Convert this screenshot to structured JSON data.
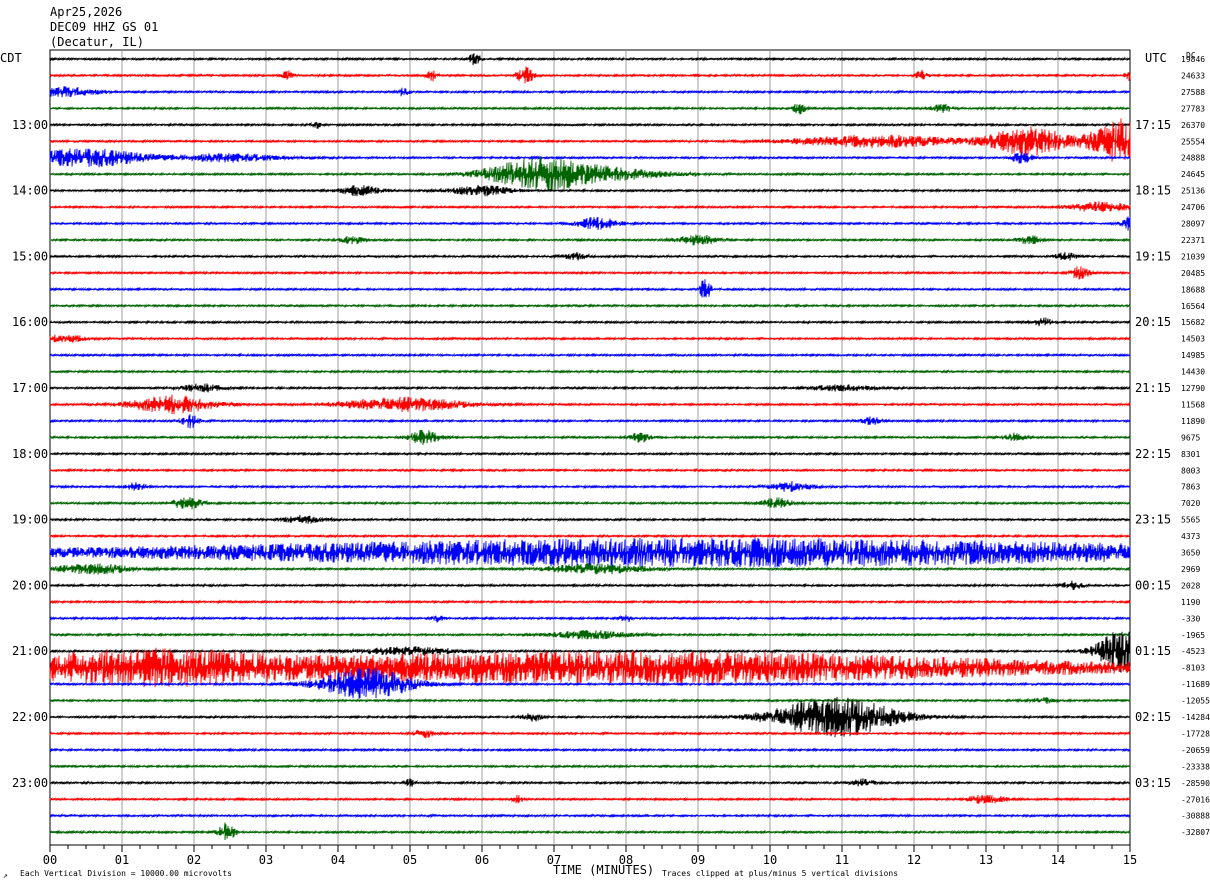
{
  "header": {
    "date": "Apr25,2026",
    "station": "DEC09 HHZ GS 01",
    "location": "(Decatur, IL)"
  },
  "left_label": "CDT",
  "right_label": "UTC",
  "dc_label": "DC",
  "footer": {
    "xlabel": "TIME (MINUTES)",
    "scale_note": "Each Vertical Division = 10000.00 microvolts",
    "clip_note": "Traces clipped at plus/minus 5 vertical divisions"
  },
  "colors": {
    "cycle": [
      "#000000",
      "#ff0000",
      "#0000ff",
      "#006400"
    ],
    "grid": "#888888"
  },
  "chart_data": {
    "type": "line",
    "title": "DEC09 HHZ GS 01",
    "xlabel": "TIME (MINUTES)",
    "ylabel": "",
    "xlim": [
      0,
      15
    ],
    "x_ticks": [
      "00",
      "01",
      "02",
      "03",
      "04",
      "05",
      "06",
      "07",
      "08",
      "09",
      "10",
      "11",
      "12",
      "13",
      "14",
      "15"
    ],
    "local_hour_labels": [
      "13:00",
      "14:00",
      "15:00",
      "16:00",
      "17:00",
      "18:00",
      "19:00",
      "20:00",
      "21:00",
      "22:00",
      "23:00"
    ],
    "utc_hour_labels": [
      "17:15",
      "18:15",
      "19:15",
      "20:15",
      "21:15",
      "22:15",
      "23:15",
      "00:15",
      "01:15",
      "02:15",
      "03:15"
    ],
    "dc_offsets": [
      "19846",
      "24633",
      "27588",
      "27783",
      "26370",
      "25554",
      "24888",
      "24645",
      "25136",
      "24706",
      "28097",
      "22371",
      "21039",
      "20485",
      "18688",
      "16564",
      "15682",
      "14503",
      "14985",
      "14430",
      "12790",
      "11568",
      "11890",
      "9675",
      "8301",
      "8003",
      "7863",
      "7020",
      "5565",
      "4373",
      "3650",
      "2969",
      "2028",
      "1190",
      "-330",
      "-1965",
      "-4523",
      "-8103",
      "-11689",
      "-12055",
      "-14284",
      "-17728",
      "-20659",
      "-23338",
      "-28590",
      "-27016",
      "-30888",
      "-32807"
    ],
    "series": [
      {
        "row": 0,
        "bursts": [
          {
            "t": 5.9,
            "a": 6,
            "w": 0.06
          }
        ]
      },
      {
        "row": 1,
        "bursts": [
          {
            "t": 3.3,
            "a": 5,
            "w": 0.05
          },
          {
            "t": 5.3,
            "a": 6,
            "w": 0.05
          },
          {
            "t": 6.6,
            "a": 9,
            "w": 0.08
          },
          {
            "t": 12.1,
            "a": 5,
            "w": 0.05
          },
          {
            "t": 15.0,
            "a": 6,
            "w": 0.05
          }
        ]
      },
      {
        "row": 2,
        "bursts": [
          {
            "t": 0.2,
            "a": 5,
            "w": 0.3
          },
          {
            "t": 4.9,
            "a": 4,
            "w": 0.05
          }
        ]
      },
      {
        "row": 3,
        "bursts": [
          {
            "t": 10.4,
            "a": 6,
            "w": 0.06
          },
          {
            "t": 12.4,
            "a": 4,
            "w": 0.1
          }
        ]
      },
      {
        "row": 4,
        "bursts": [
          {
            "t": 3.7,
            "a": 4,
            "w": 0.05
          }
        ]
      },
      {
        "row": 5,
        "bursts": [
          {
            "t": 11.5,
            "a": 6,
            "w": 0.8
          },
          {
            "t": 13.6,
            "a": 14,
            "w": 0.4
          },
          {
            "t": 14.9,
            "a": 22,
            "w": 0.3
          }
        ]
      },
      {
        "row": 6,
        "bursts": [
          {
            "t": 0.5,
            "a": 9,
            "w": 0.6
          },
          {
            "t": 2.5,
            "a": 4,
            "w": 0.5
          },
          {
            "t": 13.5,
            "a": 6,
            "w": 0.1
          }
        ]
      },
      {
        "row": 7,
        "bursts": [
          {
            "t": 6.8,
            "a": 16,
            "w": 0.5
          },
          {
            "t": 7.8,
            "a": 5,
            "w": 0.6
          }
        ]
      },
      {
        "row": 8,
        "bursts": [
          {
            "t": 4.3,
            "a": 5,
            "w": 0.2
          },
          {
            "t": 6.0,
            "a": 5,
            "w": 0.3
          }
        ]
      },
      {
        "row": 9,
        "bursts": [
          {
            "t": 14.6,
            "a": 5,
            "w": 0.3
          }
        ]
      },
      {
        "row": 10,
        "bursts": [
          {
            "t": 7.6,
            "a": 6,
            "w": 0.2
          },
          {
            "t": 15.0,
            "a": 7,
            "w": 0.08
          }
        ]
      },
      {
        "row": 11,
        "bursts": [
          {
            "t": 4.2,
            "a": 4,
            "w": 0.1
          },
          {
            "t": 9.0,
            "a": 5,
            "w": 0.2
          },
          {
            "t": 13.6,
            "a": 5,
            "w": 0.1
          }
        ]
      },
      {
        "row": 12,
        "bursts": [
          {
            "t": 7.3,
            "a": 4,
            "w": 0.1
          },
          {
            "t": 14.1,
            "a": 4,
            "w": 0.1
          }
        ]
      },
      {
        "row": 13,
        "bursts": [
          {
            "t": 14.3,
            "a": 6,
            "w": 0.1
          }
        ]
      },
      {
        "row": 14,
        "bursts": [
          {
            "t": 9.1,
            "a": 14,
            "w": 0.05
          }
        ]
      },
      {
        "row": 15,
        "bursts": []
      },
      {
        "row": 16,
        "bursts": [
          {
            "t": 13.8,
            "a": 4,
            "w": 0.1
          }
        ]
      },
      {
        "row": 17,
        "bursts": [
          {
            "t": 0.2,
            "a": 4,
            "w": 0.2
          }
        ]
      },
      {
        "row": 18,
        "bursts": []
      },
      {
        "row": 19,
        "bursts": []
      },
      {
        "row": 20,
        "bursts": [
          {
            "t": 2.1,
            "a": 4,
            "w": 0.2
          },
          {
            "t": 11.0,
            "a": 3,
            "w": 0.3
          }
        ]
      },
      {
        "row": 21,
        "bursts": [
          {
            "t": 1.7,
            "a": 9,
            "w": 0.4
          },
          {
            "t": 4.9,
            "a": 7,
            "w": 0.6
          }
        ]
      },
      {
        "row": 22,
        "bursts": [
          {
            "t": 1.95,
            "a": 7,
            "w": 0.08
          },
          {
            "t": 11.4,
            "a": 4,
            "w": 0.1
          }
        ]
      },
      {
        "row": 23,
        "bursts": [
          {
            "t": 5.2,
            "a": 7,
            "w": 0.15
          },
          {
            "t": 8.2,
            "a": 5,
            "w": 0.1
          },
          {
            "t": 13.4,
            "a": 4,
            "w": 0.1
          }
        ]
      },
      {
        "row": 24,
        "bursts": []
      },
      {
        "row": 25,
        "bursts": []
      },
      {
        "row": 26,
        "bursts": [
          {
            "t": 1.2,
            "a": 4,
            "w": 0.1
          },
          {
            "t": 10.3,
            "a": 5,
            "w": 0.2
          }
        ]
      },
      {
        "row": 27,
        "bursts": [
          {
            "t": 1.9,
            "a": 6,
            "w": 0.15
          },
          {
            "t": 10.1,
            "a": 5,
            "w": 0.15
          }
        ]
      },
      {
        "row": 28,
        "bursts": [
          {
            "t": 3.5,
            "a": 4,
            "w": 0.2
          }
        ]
      },
      {
        "row": 29,
        "bursts": []
      },
      {
        "row": 30,
        "bursts": [
          {
            "t": 9.2,
            "a": 14,
            "w": 5.8
          }
        ]
      },
      {
        "row": 31,
        "bursts": [
          {
            "t": 0.6,
            "a": 5,
            "w": 0.4
          },
          {
            "t": 7.6,
            "a": 5,
            "w": 0.5
          }
        ]
      },
      {
        "row": 32,
        "bursts": [
          {
            "t": 14.2,
            "a": 4,
            "w": 0.1
          }
        ]
      },
      {
        "row": 33,
        "bursts": []
      },
      {
        "row": 34,
        "bursts": [
          {
            "t": 5.4,
            "a": 4,
            "w": 0.05
          },
          {
            "t": 8.0,
            "a": 4,
            "w": 0.05
          }
        ]
      },
      {
        "row": 35,
        "bursts": [
          {
            "t": 7.5,
            "a": 4,
            "w": 0.4
          }
        ]
      },
      {
        "row": 36,
        "bursts": [
          {
            "t": 14.9,
            "a": 22,
            "w": 0.25
          },
          {
            "t": 5.0,
            "a": 4,
            "w": 0.5
          }
        ]
      },
      {
        "row": 37,
        "bursts": [
          {
            "t": 1.2,
            "a": 14,
            "w": 1.3
          },
          {
            "t": 8.0,
            "a": 16,
            "w": 4.5
          }
        ]
      },
      {
        "row": 38,
        "bursts": [
          {
            "t": 4.4,
            "a": 16,
            "w": 0.45
          }
        ]
      },
      {
        "row": 39,
        "bursts": [
          {
            "t": 13.8,
            "a": 3,
            "w": 0.1
          }
        ]
      },
      {
        "row": 40,
        "bursts": [
          {
            "t": 10.9,
            "a": 20,
            "w": 0.6
          },
          {
            "t": 6.7,
            "a": 4,
            "w": 0.1
          }
        ]
      },
      {
        "row": 41,
        "bursts": [
          {
            "t": 5.2,
            "a": 4,
            "w": 0.1
          }
        ]
      },
      {
        "row": 42,
        "bursts": []
      },
      {
        "row": 43,
        "bursts": []
      },
      {
        "row": 44,
        "bursts": [
          {
            "t": 5.0,
            "a": 4,
            "w": 0.05
          },
          {
            "t": 11.3,
            "a": 4,
            "w": 0.1
          }
        ]
      },
      {
        "row": 45,
        "bursts": [
          {
            "t": 6.5,
            "a": 4,
            "w": 0.05
          },
          {
            "t": 13.0,
            "a": 4,
            "w": 0.2
          }
        ]
      },
      {
        "row": 46,
        "bursts": []
      },
      {
        "row": 47,
        "bursts": [
          {
            "t": 2.45,
            "a": 9,
            "w": 0.08
          }
        ]
      }
    ]
  }
}
